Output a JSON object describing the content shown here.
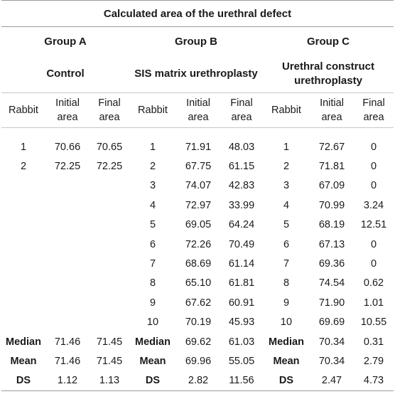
{
  "title": "Calculated area of the urethral defect",
  "groups": [
    {
      "name": "Group A",
      "description": "Control"
    },
    {
      "name": "Group B",
      "description": "SIS matrix urethroplasty"
    },
    {
      "name": "Group C",
      "description": "Urethral construct urethroplasty"
    }
  ],
  "columns": {
    "rabbit": "Rabbit",
    "initial": "Initial area",
    "final": "Final area"
  },
  "rows": [
    {
      "a": [
        "1",
        "70.66",
        "70.65"
      ],
      "b": [
        "1",
        "71.91",
        "48.03"
      ],
      "c": [
        "1",
        "72.67",
        "0"
      ]
    },
    {
      "a": [
        "2",
        "72.25",
        "72.25"
      ],
      "b": [
        "2",
        "67.75",
        "61.15"
      ],
      "c": [
        "2",
        "71.81",
        "0"
      ]
    },
    {
      "a": [
        "",
        "",
        ""
      ],
      "b": [
        "3",
        "74.07",
        "42.83"
      ],
      "c": [
        "3",
        "67.09",
        "0"
      ]
    },
    {
      "a": [
        "",
        "",
        ""
      ],
      "b": [
        "4",
        "72.97",
        "33.99"
      ],
      "c": [
        "4",
        "70.99",
        "3.24"
      ]
    },
    {
      "a": [
        "",
        "",
        ""
      ],
      "b": [
        "5",
        "69.05",
        "64.24"
      ],
      "c": [
        "5",
        "68.19",
        "12.51"
      ]
    },
    {
      "a": [
        "",
        "",
        ""
      ],
      "b": [
        "6",
        "72.26",
        "70.49"
      ],
      "c": [
        "6",
        "67.13",
        "0"
      ]
    },
    {
      "a": [
        "",
        "",
        ""
      ],
      "b": [
        "7",
        "68.69",
        "61.14"
      ],
      "c": [
        "7",
        "69.36",
        "0"
      ]
    },
    {
      "a": [
        "",
        "",
        ""
      ],
      "b": [
        "8",
        "65.10",
        "61.81"
      ],
      "c": [
        "8",
        "74.54",
        "0.62"
      ]
    },
    {
      "a": [
        "",
        "",
        ""
      ],
      "b": [
        "9",
        "67.62",
        "60.91"
      ],
      "c": [
        "9",
        "71.90",
        "1.01"
      ]
    },
    {
      "a": [
        "",
        "",
        ""
      ],
      "b": [
        "10",
        "70.19",
        "45.93"
      ],
      "c": [
        "10",
        "69.69",
        "10.55"
      ]
    }
  ],
  "stats": [
    {
      "a": [
        "Median",
        "71.46",
        "71.45"
      ],
      "b": [
        "Median",
        "69.62",
        "61.03"
      ],
      "c": [
        "Median",
        "70.34",
        "0.31"
      ]
    },
    {
      "a": [
        "Mean",
        "71.46",
        "71.45"
      ],
      "b": [
        "Mean",
        "69.96",
        "55.05"
      ],
      "c": [
        "Mean",
        "70.34",
        "2.79"
      ]
    },
    {
      "a": [
        "DS",
        "1.12",
        "1.13"
      ],
      "b": [
        "DS",
        "2.82",
        "11.56"
      ],
      "c": [
        "DS",
        "2.47",
        "4.73"
      ]
    }
  ]
}
